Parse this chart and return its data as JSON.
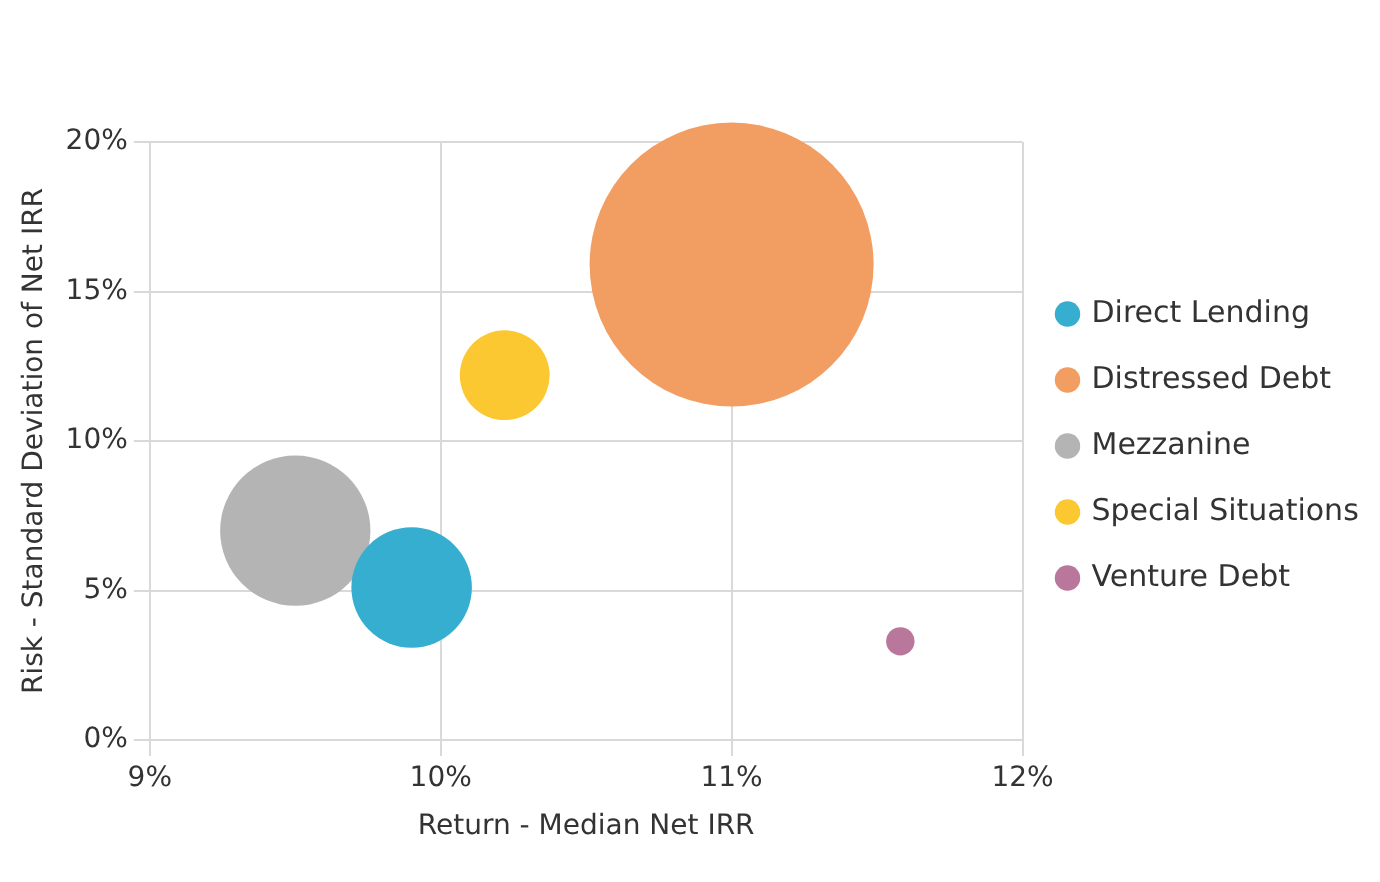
{
  "chart_data": {
    "type": "bubble",
    "xlabel": "Return - Median Net IRR",
    "ylabel": "Risk - Standard Deviation of Net IRR",
    "xlim": [
      9,
      12
    ],
    "xticks": [
      {
        "value": 9,
        "label": "9%"
      },
      {
        "value": 10,
        "label": "10%"
      },
      {
        "value": 11,
        "label": "11%"
      },
      {
        "value": 12,
        "label": "12%"
      }
    ],
    "ylim": [
      0,
      20
    ],
    "yticks": [
      {
        "value": 0,
        "label": "0%"
      },
      {
        "value": 5,
        "label": "5%"
      },
      {
        "value": 10,
        "label": "10%"
      },
      {
        "value": 15,
        "label": "15%"
      },
      {
        "value": 20,
        "label": "20%"
      }
    ],
    "grid": true,
    "legend": "right",
    "series": [
      {
        "name": "Direct Lending",
        "color": "#36aecf",
        "x": [
          9.9
        ],
        "values": [
          5.1
        ],
        "sizes": [
          0.18
        ]
      },
      {
        "name": "Distressed Debt",
        "color": "#f29d62",
        "x": [
          11.0
        ],
        "values": [
          15.9
        ],
        "sizes": [
          1
        ]
      },
      {
        "name": "Mezzanine",
        "color": "#b4b4b4",
        "x": [
          9.5
        ],
        "values": [
          7.0
        ],
        "sizes": [
          0.28
        ]
      },
      {
        "name": "Special Situations",
        "color": "#fcc832",
        "x": [
          10.22
        ],
        "values": [
          12.2
        ],
        "sizes": [
          0.1
        ]
      },
      {
        "name": "Venture Debt",
        "color": "#b9789b",
        "x": [
          11.58
        ],
        "values": [
          3.3
        ],
        "sizes": [
          0.01
        ]
      }
    ]
  }
}
